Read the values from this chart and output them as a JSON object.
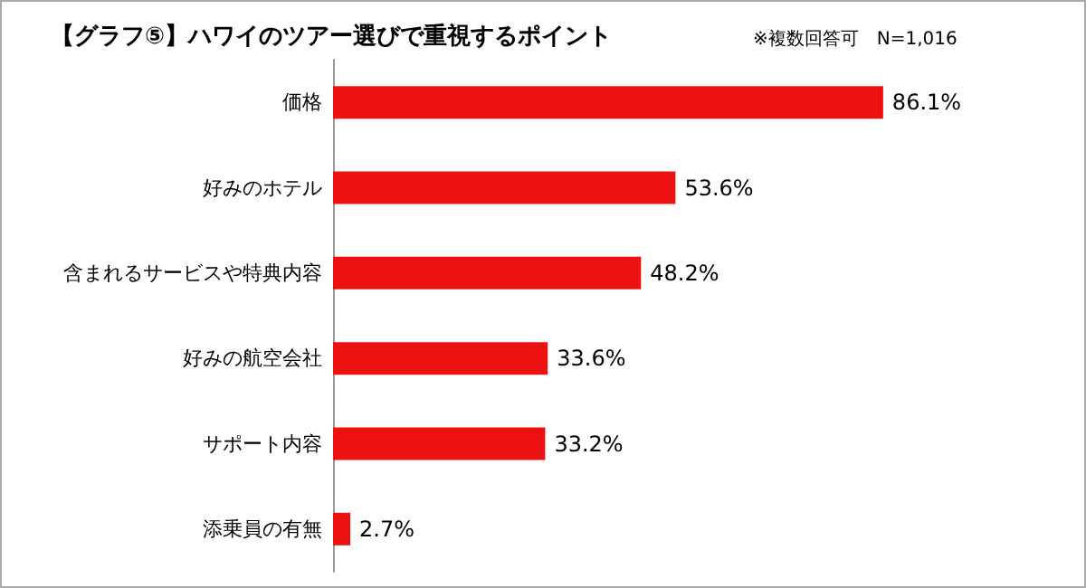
{
  "chart_data": {
    "type": "bar",
    "orientation": "horizontal",
    "title": "【グラフ⑤】ハワイのツアー選びで重視するポイント",
    "annotations": [
      "※複数回答可　N=1,016"
    ],
    "categories": [
      "価格",
      "好みのホテル",
      "含まれるサービスや特典内容",
      "好みの航空会社",
      "サポート内容",
      "添乗員の有無"
    ],
    "values": [
      86.1,
      53.6,
      48.2,
      33.6,
      33.2,
      2.7
    ],
    "color": "#ee1111",
    "value_labels": [
      "86.1%",
      "53.6%",
      "48.2%",
      "33.6%",
      "33.2%",
      "2.7%"
    ],
    "grid": false
  }
}
